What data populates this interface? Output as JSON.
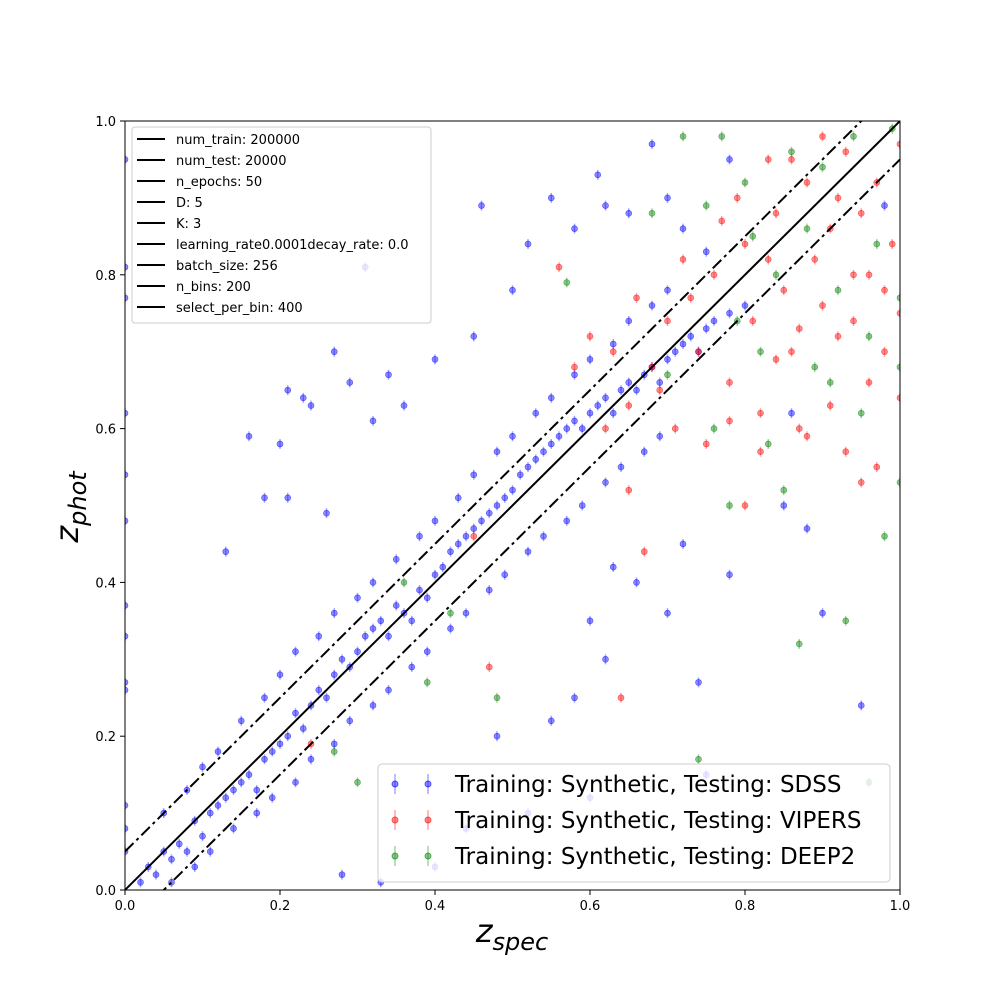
{
  "chart_data": {
    "type": "scatter",
    "title": "",
    "xlabel": {
      "base": "z",
      "sub": "spec"
    },
    "ylabel": {
      "base": "z",
      "sub": "phot"
    },
    "xlim": [
      0.0,
      1.0
    ],
    "ylim": [
      0.0,
      1.0
    ],
    "xticks": [
      "0.0",
      "0.2",
      "0.4",
      "0.6",
      "0.8",
      "1.0"
    ],
    "yticks": [
      "0.0",
      "0.2",
      "0.4",
      "0.6",
      "0.8",
      "1.0"
    ],
    "grid": false,
    "reference_lines": [
      {
        "style": "solid",
        "offset": 0.0
      },
      {
        "style": "dashdot",
        "offset": 0.05
      },
      {
        "style": "dashdot",
        "offset": -0.05
      }
    ],
    "params_legend": {
      "placement": "top-left",
      "entries": [
        "num_train: 200000",
        "num_test: 20000",
        "n_epochs: 50",
        "D: 5",
        "K: 3",
        "learning_rate0.0001decay_rate: 0.0",
        "batch_size: 256",
        "n_bins: 200",
        "select_per_bin: 400"
      ]
    },
    "series_legend": {
      "placement": "lower-right",
      "entries": [
        "Training: Synthetic, Testing: SDSS",
        "Training: Synthetic, Testing: VIPERS",
        "Training: Synthetic, Testing: DEEP2"
      ]
    },
    "series": [
      {
        "name": "Training: Synthetic, Testing: SDSS",
        "color": "#0000ff",
        "points": [
          [
            0.02,
            0.01
          ],
          [
            0.03,
            0.03
          ],
          [
            0.04,
            0.02
          ],
          [
            0.05,
            0.05
          ],
          [
            0.06,
            0.04
          ],
          [
            0.07,
            0.06
          ],
          [
            0.08,
            0.05
          ],
          [
            0.09,
            0.09
          ],
          [
            0.1,
            0.07
          ],
          [
            0.11,
            0.1
          ],
          [
            0.12,
            0.11
          ],
          [
            0.13,
            0.12
          ],
          [
            0.14,
            0.13
          ],
          [
            0.15,
            0.14
          ],
          [
            0.16,
            0.15
          ],
          [
            0.17,
            0.13
          ],
          [
            0.18,
            0.17
          ],
          [
            0.19,
            0.18
          ],
          [
            0.2,
            0.19
          ],
          [
            0.21,
            0.2
          ],
          [
            0.22,
            0.23
          ],
          [
            0.23,
            0.21
          ],
          [
            0.24,
            0.24
          ],
          [
            0.25,
            0.26
          ],
          [
            0.26,
            0.25
          ],
          [
            0.27,
            0.28
          ],
          [
            0.28,
            0.3
          ],
          [
            0.29,
            0.29
          ],
          [
            0.3,
            0.31
          ],
          [
            0.31,
            0.33
          ],
          [
            0.32,
            0.34
          ],
          [
            0.33,
            0.35
          ],
          [
            0.34,
            0.33
          ],
          [
            0.35,
            0.37
          ],
          [
            0.36,
            0.36
          ],
          [
            0.37,
            0.35
          ],
          [
            0.38,
            0.39
          ],
          [
            0.39,
            0.38
          ],
          [
            0.4,
            0.41
          ],
          [
            0.41,
            0.42
          ],
          [
            0.42,
            0.44
          ],
          [
            0.43,
            0.45
          ],
          [
            0.44,
            0.46
          ],
          [
            0.45,
            0.47
          ],
          [
            0.46,
            0.48
          ],
          [
            0.47,
            0.49
          ],
          [
            0.48,
            0.5
          ],
          [
            0.49,
            0.51
          ],
          [
            0.5,
            0.52
          ],
          [
            0.51,
            0.54
          ],
          [
            0.52,
            0.55
          ],
          [
            0.53,
            0.56
          ],
          [
            0.54,
            0.57
          ],
          [
            0.55,
            0.58
          ],
          [
            0.56,
            0.59
          ],
          [
            0.57,
            0.6
          ],
          [
            0.58,
            0.61
          ],
          [
            0.59,
            0.6
          ],
          [
            0.6,
            0.62
          ],
          [
            0.61,
            0.63
          ],
          [
            0.62,
            0.64
          ],
          [
            0.63,
            0.62
          ],
          [
            0.64,
            0.65
          ],
          [
            0.65,
            0.66
          ],
          [
            0.66,
            0.65
          ],
          [
            0.67,
            0.67
          ],
          [
            0.68,
            0.68
          ],
          [
            0.69,
            0.66
          ],
          [
            0.7,
            0.69
          ],
          [
            0.71,
            0.7
          ],
          [
            0.72,
            0.71
          ],
          [
            0.73,
            0.72
          ],
          [
            0.74,
            0.7
          ],
          [
            0.75,
            0.73
          ],
          [
            0.76,
            0.74
          ],
          [
            0.78,
            0.75
          ],
          [
            0.8,
            0.76
          ],
          [
            0.05,
            0.1
          ],
          [
            0.08,
            0.13
          ],
          [
            0.1,
            0.16
          ],
          [
            0.12,
            0.18
          ],
          [
            0.15,
            0.22
          ],
          [
            0.18,
            0.25
          ],
          [
            0.2,
            0.28
          ],
          [
            0.22,
            0.31
          ],
          [
            0.25,
            0.33
          ],
          [
            0.27,
            0.36
          ],
          [
            0.3,
            0.38
          ],
          [
            0.32,
            0.4
          ],
          [
            0.35,
            0.43
          ],
          [
            0.38,
            0.46
          ],
          [
            0.4,
            0.48
          ],
          [
            0.43,
            0.51
          ],
          [
            0.45,
            0.54
          ],
          [
            0.48,
            0.57
          ],
          [
            0.5,
            0.59
          ],
          [
            0.53,
            0.62
          ],
          [
            0.55,
            0.64
          ],
          [
            0.58,
            0.67
          ],
          [
            0.6,
            0.69
          ],
          [
            0.63,
            0.71
          ],
          [
            0.65,
            0.74
          ],
          [
            0.68,
            0.76
          ],
          [
            0.7,
            0.78
          ],
          [
            0.06,
            0.01
          ],
          [
            0.09,
            0.03
          ],
          [
            0.11,
            0.05
          ],
          [
            0.14,
            0.08
          ],
          [
            0.17,
            0.1
          ],
          [
            0.19,
            0.12
          ],
          [
            0.22,
            0.14
          ],
          [
            0.24,
            0.17
          ],
          [
            0.27,
            0.19
          ],
          [
            0.29,
            0.22
          ],
          [
            0.32,
            0.24
          ],
          [
            0.34,
            0.26
          ],
          [
            0.37,
            0.29
          ],
          [
            0.39,
            0.31
          ],
          [
            0.42,
            0.34
          ],
          [
            0.44,
            0.36
          ],
          [
            0.47,
            0.39
          ],
          [
            0.49,
            0.41
          ],
          [
            0.52,
            0.44
          ],
          [
            0.54,
            0.46
          ],
          [
            0.57,
            0.48
          ],
          [
            0.59,
            0.5
          ],
          [
            0.62,
            0.53
          ],
          [
            0.64,
            0.55
          ],
          [
            0.67,
            0.57
          ],
          [
            0.69,
            0.59
          ],
          [
            0.16,
            0.59
          ],
          [
            0.2,
            0.58
          ],
          [
            0.21,
            0.65
          ],
          [
            0.23,
            0.64
          ],
          [
            0.27,
            0.7
          ],
          [
            0.29,
            0.66
          ],
          [
            0.31,
            0.81
          ],
          [
            0.32,
            0.61
          ],
          [
            0.34,
            0.67
          ],
          [
            0.36,
            0.63
          ],
          [
            0.4,
            0.69
          ],
          [
            0.45,
            0.72
          ],
          [
            0.46,
            0.89
          ],
          [
            0.5,
            0.78
          ],
          [
            0.52,
            0.84
          ],
          [
            0.55,
            0.9
          ],
          [
            0.58,
            0.86
          ],
          [
            0.61,
            0.93
          ],
          [
            0.62,
            0.89
          ],
          [
            0.65,
            0.88
          ],
          [
            0.68,
            0.97
          ],
          [
            0.7,
            0.9
          ],
          [
            0.72,
            0.86
          ],
          [
            0.75,
            0.83
          ],
          [
            0.78,
            0.95
          ],
          [
            0.13,
            0.44
          ],
          [
            0.18,
            0.51
          ],
          [
            0.21,
            0.51
          ],
          [
            0.24,
            0.63
          ],
          [
            0.26,
            0.49
          ],
          [
            0.55,
            0.22
          ],
          [
            0.6,
            0.35
          ],
          [
            0.62,
            0.3
          ],
          [
            0.66,
            0.4
          ],
          [
            0.7,
            0.36
          ],
          [
            0.74,
            0.27
          ],
          [
            0.78,
            0.41
          ],
          [
            0.9,
            0.36
          ],
          [
            0.95,
            0.24
          ],
          [
            0.52,
            0.1
          ],
          [
            0.44,
            0.08
          ],
          [
            0.4,
            0.03
          ],
          [
            0.33,
            0.01
          ],
          [
            0.28,
            0.02
          ],
          [
            0.48,
            0.2
          ],
          [
            0.58,
            0.25
          ],
          [
            0.63,
            0.42
          ],
          [
            0.72,
            0.45
          ],
          [
            0.85,
            0.5
          ],
          [
            0.88,
            0.47
          ],
          [
            0.0,
            0.95
          ],
          [
            0.0,
            0.81
          ],
          [
            0.0,
            0.77
          ],
          [
            0.0,
            0.62
          ],
          [
            0.0,
            0.54
          ],
          [
            0.0,
            0.48
          ],
          [
            0.0,
            0.37
          ],
          [
            0.0,
            0.33
          ],
          [
            0.0,
            0.27
          ],
          [
            0.0,
            0.26
          ],
          [
            0.0,
            0.11
          ],
          [
            0.0,
            0.08
          ],
          [
            0.0,
            0.05
          ],
          [
            0.6,
            0.12
          ],
          [
            0.75,
            0.15
          ],
          [
            0.86,
            0.62
          ],
          [
            0.98,
            0.89
          ]
        ]
      },
      {
        "name": "Training: Synthetic, Testing: VIPERS",
        "color": "#ff0000",
        "points": [
          [
            0.56,
            0.81
          ],
          [
            0.6,
            0.72
          ],
          [
            0.62,
            0.6
          ],
          [
            0.65,
            0.63
          ],
          [
            0.68,
            0.68
          ],
          [
            0.7,
            0.74
          ],
          [
            0.72,
            0.82
          ],
          [
            0.74,
            0.7
          ],
          [
            0.76,
            0.8
          ],
          [
            0.78,
            0.66
          ],
          [
            0.79,
            0.9
          ],
          [
            0.8,
            0.84
          ],
          [
            0.81,
            0.74
          ],
          [
            0.82,
            0.62
          ],
          [
            0.83,
            0.95
          ],
          [
            0.84,
            0.88
          ],
          [
            0.85,
            0.78
          ],
          [
            0.86,
            0.7
          ],
          [
            0.87,
            0.6
          ],
          [
            0.88,
            0.92
          ],
          [
            0.89,
            0.82
          ],
          [
            0.9,
            0.76
          ],
          [
            0.91,
            0.86
          ],
          [
            0.92,
            0.72
          ],
          [
            0.93,
            0.96
          ],
          [
            0.94,
            0.8
          ],
          [
            0.95,
            0.88
          ],
          [
            0.96,
            0.66
          ],
          [
            0.97,
            0.92
          ],
          [
            0.98,
            0.78
          ],
          [
            0.99,
            0.84
          ],
          [
            1.0,
            0.97
          ],
          [
            1.0,
            0.75
          ],
          [
            1.0,
            0.64
          ],
          [
            0.95,
            0.53
          ],
          [
            0.93,
            0.57
          ],
          [
            0.88,
            0.59
          ],
          [
            0.84,
            0.69
          ],
          [
            0.78,
            0.61
          ],
          [
            0.75,
            0.58
          ],
          [
            0.71,
            0.6
          ],
          [
            0.67,
            0.44
          ],
          [
            0.65,
            0.52
          ],
          [
            0.64,
            0.25
          ],
          [
            0.47,
            0.29
          ],
          [
            0.45,
            0.46
          ],
          [
            0.24,
            0.19
          ],
          [
            0.8,
            0.5
          ],
          [
            0.82,
            0.57
          ],
          [
            0.86,
            0.95
          ],
          [
            0.9,
            0.98
          ],
          [
            0.92,
            0.9
          ],
          [
            0.94,
            0.74
          ],
          [
            0.96,
            0.8
          ],
          [
            0.98,
            0.7
          ],
          [
            0.97,
            0.55
          ],
          [
            0.91,
            0.63
          ],
          [
            0.87,
            0.73
          ],
          [
            0.83,
            0.82
          ],
          [
            0.77,
            0.87
          ],
          [
            0.73,
            0.77
          ],
          [
            0.69,
            0.65
          ],
          [
            0.66,
            0.77
          ],
          [
            0.63,
            0.7
          ],
          [
            0.58,
            0.68
          ]
        ]
      },
      {
        "name": "Training: Synthetic, Testing: DEEP2",
        "color": "#008000",
        "points": [
          [
            0.3,
            0.14
          ],
          [
            0.27,
            0.18
          ],
          [
            0.36,
            0.4
          ],
          [
            0.39,
            0.27
          ],
          [
            0.42,
            0.36
          ],
          [
            0.48,
            0.25
          ],
          [
            0.57,
            0.79
          ],
          [
            0.68,
            0.88
          ],
          [
            0.72,
            0.98
          ],
          [
            0.74,
            0.17
          ],
          [
            0.76,
            0.6
          ],
          [
            0.78,
            0.5
          ],
          [
            0.8,
            0.92
          ],
          [
            0.82,
            0.7
          ],
          [
            0.84,
            0.8
          ],
          [
            0.85,
            0.52
          ],
          [
            0.86,
            0.96
          ],
          [
            0.87,
            0.32
          ],
          [
            0.88,
            0.86
          ],
          [
            0.89,
            0.68
          ],
          [
            0.9,
            0.94
          ],
          [
            0.91,
            0.66
          ],
          [
            0.92,
            0.78
          ],
          [
            0.93,
            0.35
          ],
          [
            0.94,
            0.98
          ],
          [
            0.95,
            0.62
          ],
          [
            0.96,
            0.72
          ],
          [
            0.97,
            0.84
          ],
          [
            0.98,
            0.46
          ],
          [
            0.99,
            0.99
          ],
          [
            1.0,
            0.68
          ],
          [
            1.0,
            0.53
          ],
          [
            1.0,
            0.77
          ],
          [
            0.96,
            0.14
          ],
          [
            0.77,
            0.98
          ],
          [
            0.81,
            0.85
          ],
          [
            0.83,
            0.58
          ],
          [
            0.79,
            0.74
          ],
          [
            0.75,
            0.89
          ],
          [
            0.7,
            0.67
          ]
        ]
      }
    ]
  }
}
